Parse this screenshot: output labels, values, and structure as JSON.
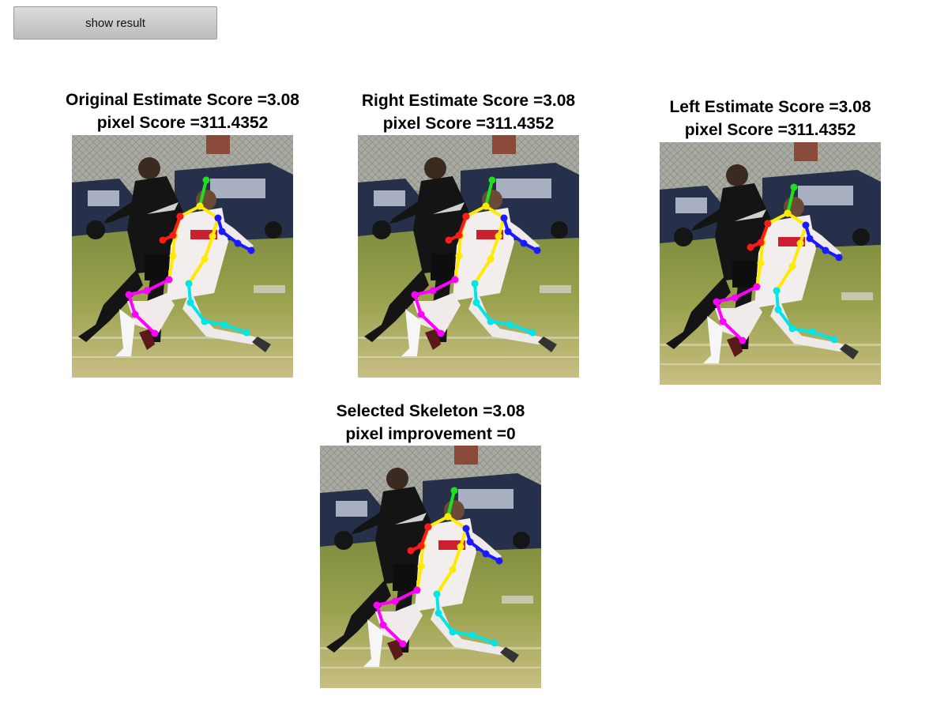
{
  "controls": {
    "show_result_label": "show result"
  },
  "panels": {
    "original": {
      "title_line1": "Original Estimate Score =3.08",
      "title_line2": "pixel Score =311.4352"
    },
    "right": {
      "title_line1": "Right Estimate Score =3.08",
      "title_line2": "pixel Score =311.4352"
    },
    "left": {
      "title_line1": "Left Estimate Score =3.08",
      "title_line2": "pixel Score =311.4352"
    },
    "selected": {
      "title_line1": "Selected Skeleton =3.08",
      "title_line2": "pixel improvement =0"
    }
  },
  "skeleton_colors": {
    "head": "#1fe01f",
    "torso": "#ffea00",
    "right_arm": "#ff1a1a",
    "left_arm": "#1a1aff",
    "right_leg": "#ff00ff",
    "left_leg": "#00e5e5"
  }
}
